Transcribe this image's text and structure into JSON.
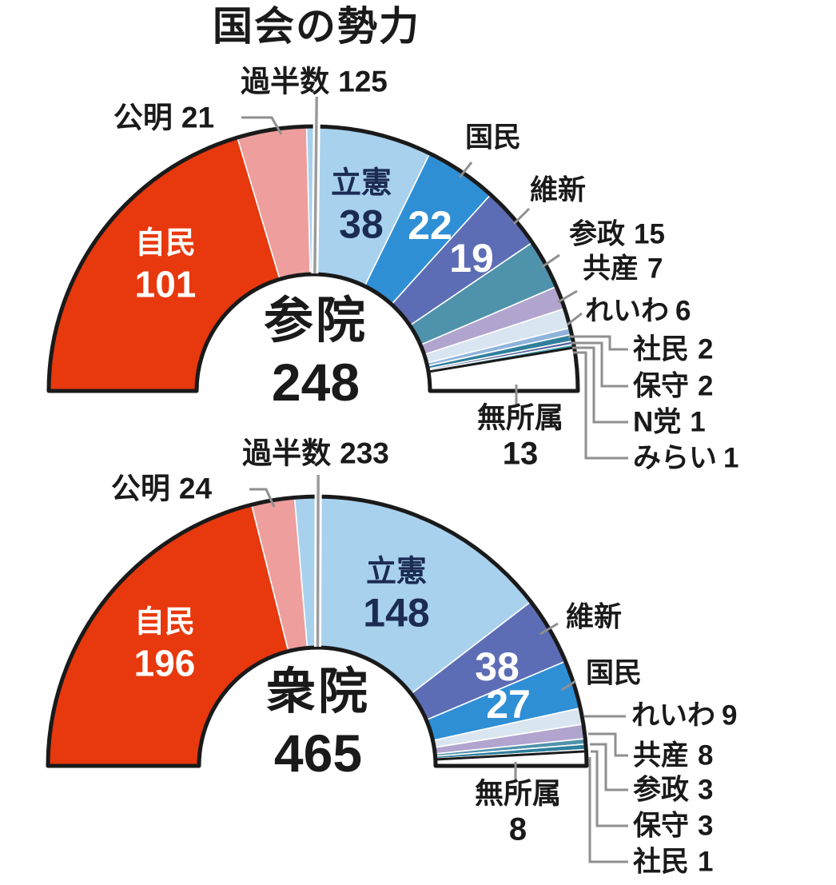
{
  "title": "国会の勢力",
  "chart_data": [
    {
      "type": "pie",
      "variant": "semicircle-donut",
      "house": "参院",
      "total": 248,
      "majority": 125,
      "majority_label": "過半数",
      "majority_value": "125",
      "legend_position": "around",
      "segments": [
        {
          "id": "jimin",
          "party": "自民",
          "seats": 101,
          "color": "#e8380d"
        },
        {
          "id": "komei",
          "party": "公明",
          "seats": 21,
          "color": "#ee9e9d"
        },
        {
          "id": "rikken",
          "party": "立憲",
          "seats": 38,
          "color": "#a8d1ee"
        },
        {
          "id": "kokumin",
          "party": "国民",
          "seats": 22,
          "color": "#2e8fd5"
        },
        {
          "id": "ishin",
          "party": "維新",
          "seats": 19,
          "color": "#5d6db5"
        },
        {
          "id": "sansei",
          "party": "参政",
          "seats": 15,
          "color": "#4e92ab"
        },
        {
          "id": "kyosan",
          "party": "共産",
          "seats": 7,
          "color": "#b1a4cf"
        },
        {
          "id": "reiwa",
          "party": "れいわ",
          "seats": 6,
          "color": "#d9e5f1"
        },
        {
          "id": "shamin",
          "party": "社民",
          "seats": 2,
          "color": "#8fb4dc"
        },
        {
          "id": "hoshu",
          "party": "保守",
          "seats": 2,
          "color": "#2f7f9c"
        },
        {
          "id": "nto",
          "party": "N党",
          "seats": 1,
          "color": "#55619d"
        },
        {
          "id": "mirai",
          "party": "みらい",
          "seats": 1,
          "color": "#3fa0b0"
        },
        {
          "id": "mushozoku",
          "party": "無所属",
          "seats": 13,
          "color": "#ffffff"
        }
      ]
    },
    {
      "type": "pie",
      "variant": "semicircle-donut",
      "house": "衆院",
      "total": 465,
      "majority": 233,
      "majority_label": "過半数",
      "majority_value": "233",
      "legend_position": "around",
      "segments": [
        {
          "id": "jimin",
          "party": "自民",
          "seats": 196,
          "color": "#e8380d"
        },
        {
          "id": "komei",
          "party": "公明",
          "seats": 24,
          "color": "#ee9e9d"
        },
        {
          "id": "rikken",
          "party": "立憲",
          "seats": 148,
          "color": "#a8d1ee"
        },
        {
          "id": "ishin",
          "party": "維新",
          "seats": 38,
          "color": "#5d6db5"
        },
        {
          "id": "kokumin",
          "party": "国民",
          "seats": 27,
          "color": "#2e8fd5"
        },
        {
          "id": "reiwa",
          "party": "れいわ",
          "seats": 9,
          "color": "#d9e5f1"
        },
        {
          "id": "kyosan",
          "party": "共産",
          "seats": 8,
          "color": "#b1a4cf"
        },
        {
          "id": "sansei",
          "party": "参政",
          "seats": 3,
          "color": "#4e92ab"
        },
        {
          "id": "hoshu",
          "party": "保守",
          "seats": 3,
          "color": "#2f7f9c"
        },
        {
          "id": "shamin",
          "party": "社民",
          "seats": 1,
          "color": "#8fb4dc"
        },
        {
          "id": "mushozoku",
          "party": "無所属",
          "seats": 8,
          "color": "#ffffff"
        }
      ]
    }
  ],
  "style": {
    "outline_color": "#1a1a1a",
    "leader_color": "#8f8f8f",
    "majority_line_color": "#9b9b9b",
    "inside_number_color": "#ffffff",
    "rikken_label_color": "#1b2b52"
  }
}
